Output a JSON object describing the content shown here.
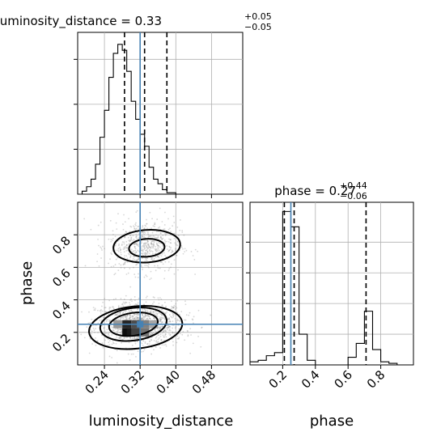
{
  "chart_data": [
    {
      "panel": "luminosity_distance-marginal",
      "type": "histogram",
      "title_main": "luminosity_distance = 0.33",
      "title_sup": "+0.05",
      "title_sub": "−0.05",
      "x_range": [
        0.18,
        0.55
      ],
      "bin_width": 0.01,
      "bin_start": 0.18,
      "counts": [
        0,
        2,
        5,
        10,
        20,
        38,
        56,
        78,
        94,
        100,
        96,
        82,
        62,
        50,
        40,
        32,
        18,
        10,
        7,
        3,
        1,
        1,
        0,
        0,
        0,
        0,
        0,
        0,
        0,
        0,
        0,
        0,
        0,
        0,
        0,
        0,
        0
      ],
      "quantile_lines": [
        0.285,
        0.33,
        0.38
      ],
      "truth": 0.32,
      "y_ticks": [
        30,
        60,
        90
      ],
      "y_max": 108,
      "grid": true
    },
    {
      "panel": "phase-marginal",
      "type": "histogram",
      "title_main": "phase = 0.27",
      "title_sup": "+0.44",
      "title_sub": "−0.06",
      "x_range": [
        0.0,
        1.0
      ],
      "bin_width": 0.05,
      "bin_start": 0.0,
      "counts": [
        2,
        3,
        6,
        8,
        100,
        90,
        20,
        3,
        0,
        0,
        0,
        0,
        5,
        14,
        35,
        10,
        2,
        1,
        0,
        0
      ],
      "quantile_lines": [
        0.21,
        0.27,
        0.71
      ],
      "truth": 0.25,
      "y_ticks": [
        20,
        40,
        60,
        80
      ],
      "y_max": 106,
      "grid": true
    },
    {
      "panel": "joint-2d",
      "type": "scatter",
      "x_range": [
        0.18,
        0.55
      ],
      "y_range": [
        0.0,
        1.0
      ],
      "x_ticks": [
        "0.24",
        "0.32",
        "0.40",
        "0.48"
      ],
      "x_tick_values": [
        0.24,
        0.32,
        0.4,
        0.48
      ],
      "y_ticks": [
        "0.2",
        "0.4",
        "0.6",
        "0.8"
      ],
      "y_tick_values": [
        0.2,
        0.4,
        0.6,
        0.8
      ],
      "xlabel": "luminosity_distance",
      "ylabel": "phase",
      "truth": [
        0.32,
        0.25
      ],
      "modes": [
        {
          "cx": 0.32,
          "cy": 0.25,
          "sx": 0.05,
          "sy": 0.07,
          "n": 1200
        },
        {
          "cx": 0.33,
          "cy": 0.73,
          "sx": 0.04,
          "sy": 0.08,
          "n": 650
        }
      ],
      "contours": [
        {
          "cx": 0.305,
          "cy": 0.25,
          "rx": 0.055,
          "ry": 0.07,
          "rot": -8
        },
        {
          "cx": 0.305,
          "cy": 0.25,
          "rx": 0.075,
          "ry": 0.1,
          "rot": -8
        },
        {
          "cx": 0.31,
          "cy": 0.23,
          "rx": 0.105,
          "ry": 0.13,
          "rot": -6
        },
        {
          "cx": 0.335,
          "cy": 0.72,
          "rx": 0.04,
          "ry": 0.055,
          "rot": -4
        },
        {
          "cx": 0.335,
          "cy": 0.73,
          "rx": 0.075,
          "ry": 0.1,
          "rot": -4
        }
      ],
      "dark_cells": [
        {
          "x": 0.29,
          "y": 0.2,
          "v": 0.95
        },
        {
          "x": 0.3,
          "y": 0.2,
          "v": 0.9
        },
        {
          "x": 0.31,
          "y": 0.2,
          "v": 0.75
        },
        {
          "x": 0.33,
          "y": 0.2,
          "v": 0.55
        },
        {
          "x": 0.29,
          "y": 0.25,
          "v": 0.85
        },
        {
          "x": 0.31,
          "y": 0.25,
          "v": 0.7
        },
        {
          "x": 0.33,
          "y": 0.25,
          "v": 0.5
        },
        {
          "x": 0.35,
          "y": 0.25,
          "v": 0.35
        },
        {
          "x": 0.27,
          "y": 0.25,
          "v": 0.4
        }
      ],
      "grid": true
    }
  ],
  "colors": {
    "truth": "#4682b4",
    "hist": "#000000",
    "points": "#8c8c8c",
    "grid": "#b0b0b0"
  },
  "axis_text": {
    "x_left": "luminosity_distance",
    "x_right": "phase",
    "y_left": "phase",
    "right_x_ticks": [
      "0.2",
      "0.4",
      "0.6",
      "0.8"
    ]
  }
}
